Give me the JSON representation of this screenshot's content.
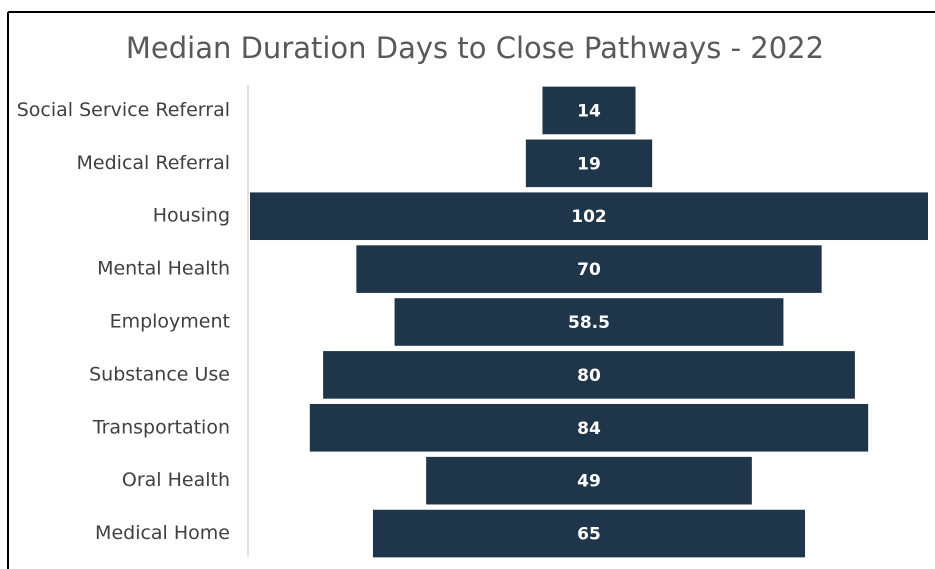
{
  "chart_data": {
    "type": "bar",
    "orientation": "horizontal-centered",
    "title": "Median Duration Days to Close Pathways - 2022",
    "categories": [
      "Social Service Referral",
      "Medical Referral",
      "Housing",
      "Mental Health",
      "Employment",
      "Substance Use",
      "Transportation",
      "Oral Health",
      "Medical Home"
    ],
    "values": [
      14,
      19,
      102,
      70,
      58.5,
      80,
      84,
      49,
      65
    ],
    "color": "#1f3549"
  }
}
